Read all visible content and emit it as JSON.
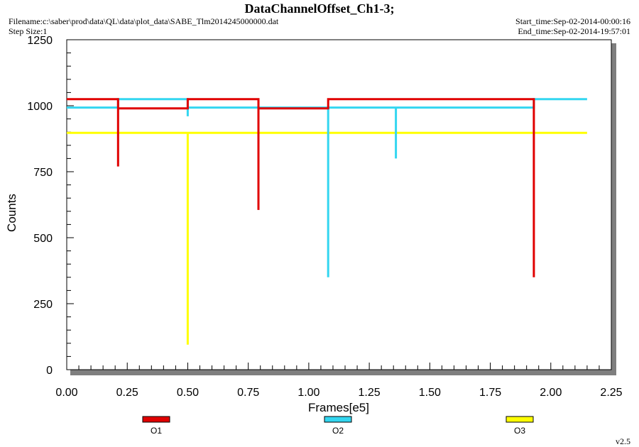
{
  "header": {
    "title": "DataChannelOffset_Ch1-3;",
    "filename": "Filename:c:\\saber\\prod\\data\\QL\\data\\plot_data\\SABE_Tlm2014245000000.dat",
    "step_size": "Step Size:1",
    "start_time": "Start_time:Sep-02-2014-00:00:16",
    "end_time": "End_time:Sep-02-2014-19:57:01"
  },
  "version": "v2.5",
  "chart_data": {
    "type": "line",
    "title": "DataChannelOffset_Ch1-3;",
    "xlabel": "Frames[e5]",
    "ylabel": "Counts",
    "xlim": [
      0,
      2.25
    ],
    "ylim": [
      0,
      1250
    ],
    "xticks": [
      "0.00",
      "0.25",
      "0.50",
      "0.75",
      "1.00",
      "1.25",
      "1.50",
      "1.75",
      "2.00",
      "2.25"
    ],
    "yticks": [
      "0",
      "250",
      "500",
      "750",
      "1000",
      "1250"
    ],
    "grid": false,
    "legend_position": "bottom",
    "series": [
      {
        "name": "O1",
        "color": "#e00000",
        "x": [
          0.0,
          0.212,
          0.212,
          0.212,
          0.212,
          0.5,
          0.5,
          0.792,
          0.792,
          0.792,
          0.792,
          1.08,
          1.08,
          1.93,
          1.93,
          1.93
        ],
        "y": [
          1025,
          1025,
          770,
          1025,
          990,
          990,
          1025,
          1025,
          605,
          1025,
          990,
          990,
          1025,
          1025,
          350,
          1025
        ]
      },
      {
        "name": "O2",
        "color": "#33d6f0",
        "x": [
          0.0,
          0.212,
          0.212,
          0.5,
          0.5,
          0.5,
          0.5,
          1.08,
          1.08,
          1.08,
          1.36,
          1.36,
          1.36,
          1.93,
          1.93,
          2.15
        ],
        "y": [
          993,
          993,
          1025,
          1025,
          960,
          1025,
          993,
          993,
          350,
          993,
          993,
          800,
          993,
          993,
          1025,
          1025
        ]
      },
      {
        "name": "O3",
        "color": "#ffff00",
        "x": [
          0.0,
          0.5,
          0.5,
          0.5,
          2.15
        ],
        "y": [
          897,
          897,
          95,
          897,
          897
        ]
      }
    ]
  }
}
